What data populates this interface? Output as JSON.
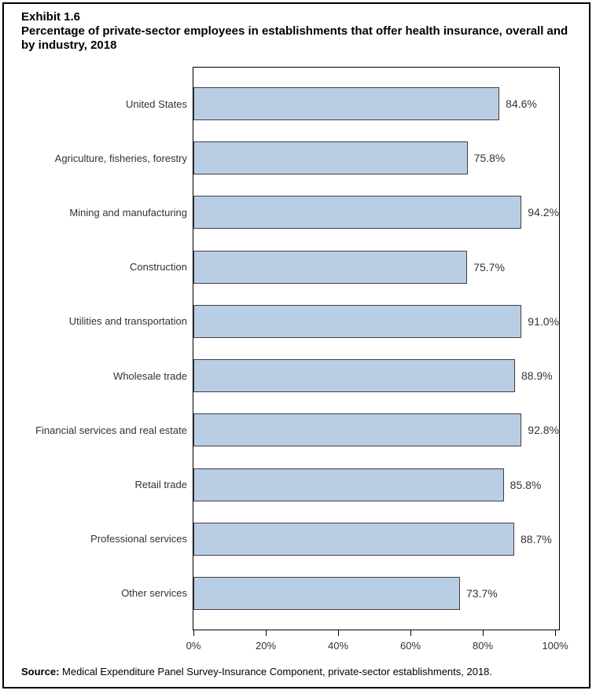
{
  "header": {
    "exhibit": "Exhibit 1.6",
    "title": "Percentage of private-sector employees in establishments that offer health insurance, overall and by industry, 2018"
  },
  "chart_data": {
    "type": "bar",
    "orientation": "horizontal",
    "title": "Percentage of private-sector employees in establishments that offer health insurance, overall and by industry, 2018",
    "categories": [
      "United States",
      "Agriculture, fisheries, forestry",
      "Mining and manufacturing",
      "Construction",
      "Utilities and transportation",
      "Wholesale trade",
      "Financial services and real estate",
      "Retail trade",
      "Professional services",
      "Other services"
    ],
    "values": [
      84.6,
      75.8,
      94.2,
      75.7,
      91.0,
      88.9,
      92.8,
      85.8,
      88.7,
      73.7
    ],
    "value_labels": [
      "84.6%",
      "75.8%",
      "94.2%",
      "75.7%",
      "91.0%",
      "88.9%",
      "92.8%",
      "85.8%",
      "88.7%",
      "73.7%"
    ],
    "x_ticks": [
      "0%",
      "20%",
      "40%",
      "60%",
      "80%",
      "100%"
    ],
    "x_tick_values": [
      0,
      20,
      40,
      60,
      80,
      100
    ],
    "xlim": [
      0,
      101
    ],
    "xlabel": "",
    "ylabel": "",
    "grid": false,
    "legend": "none",
    "bar_fill": "#B9CDE5",
    "bar_border": "#404040"
  },
  "source": {
    "label": "Source:",
    "text": " Medical Expenditure Panel Survey-Insurance Component, private-sector establishments, 2018."
  }
}
